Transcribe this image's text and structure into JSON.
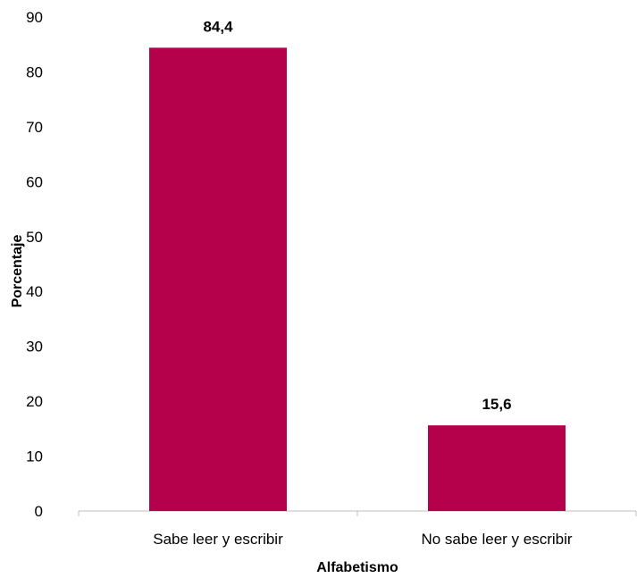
{
  "chart_data": {
    "type": "bar",
    "categories": [
      "Sabe leer y escribir",
      "No sabe leer y escribir"
    ],
    "values": [
      84.4,
      15.6
    ],
    "data_labels": [
      "84,4",
      "15,6"
    ],
    "title": "",
    "xlabel": "Alfabetismo",
    "ylabel": "Porcentaje",
    "ylim": [
      0,
      90
    ],
    "yticks": [
      0,
      10,
      20,
      30,
      40,
      50,
      60,
      70,
      80,
      90
    ],
    "grid": false,
    "legend": "none",
    "bar_color": "#B5004B"
  }
}
